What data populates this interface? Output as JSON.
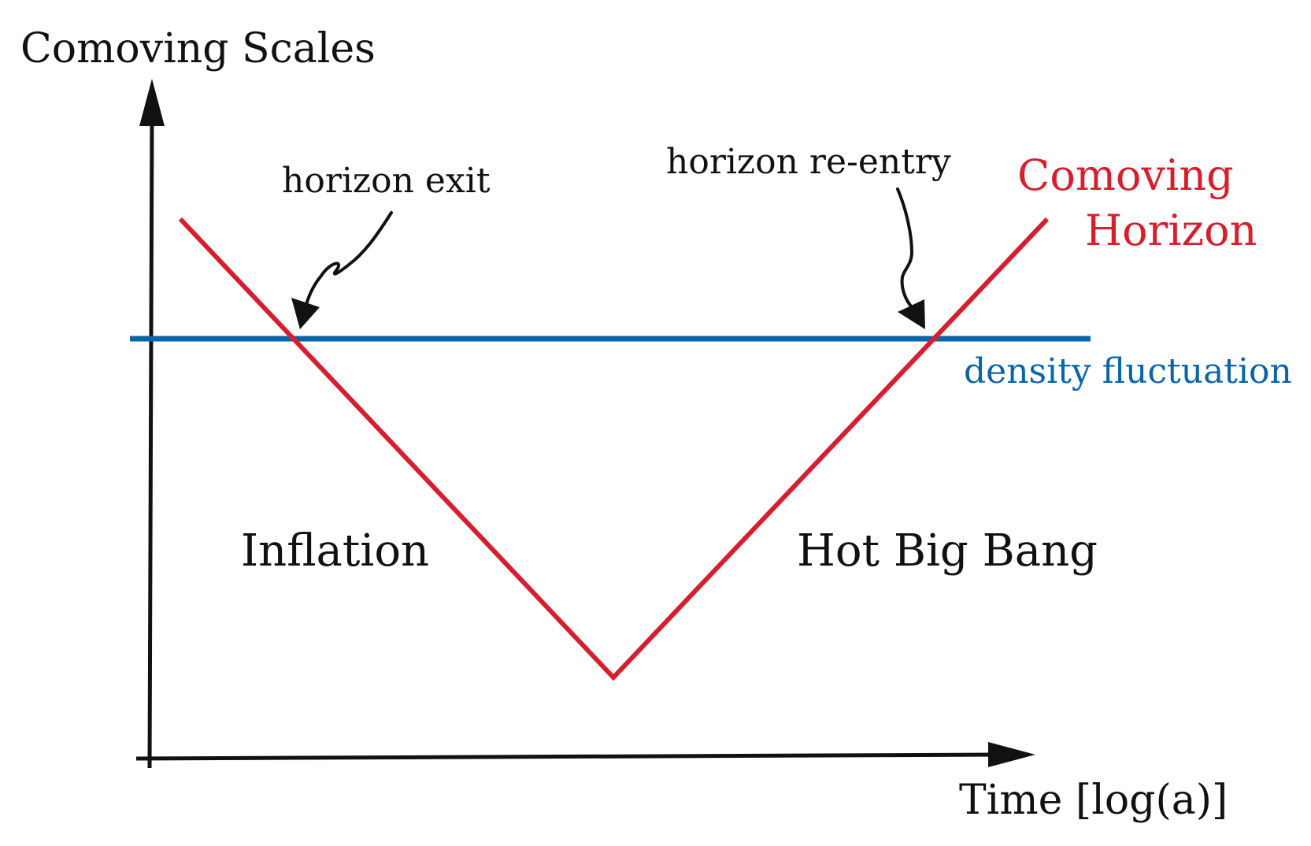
{
  "labels": {
    "y_axis": "Comoving Scales",
    "x_axis": "Time [log(a)]",
    "horizon_exit": "horizon exit",
    "horizon_reentry": "horizon re-entry",
    "comoving_horizon_line1": "Comoving",
    "comoving_horizon_line2": "Horizon",
    "density_fluctuation": "density fluctuation",
    "region_left": "Inflation",
    "region_right": "Hot Big Bang"
  },
  "colors": {
    "axes": "#111111",
    "comoving_horizon": "#d51f2e",
    "density_fluctuation": "#0a64a8",
    "arrows": "#111111",
    "text": "#111111"
  }
}
